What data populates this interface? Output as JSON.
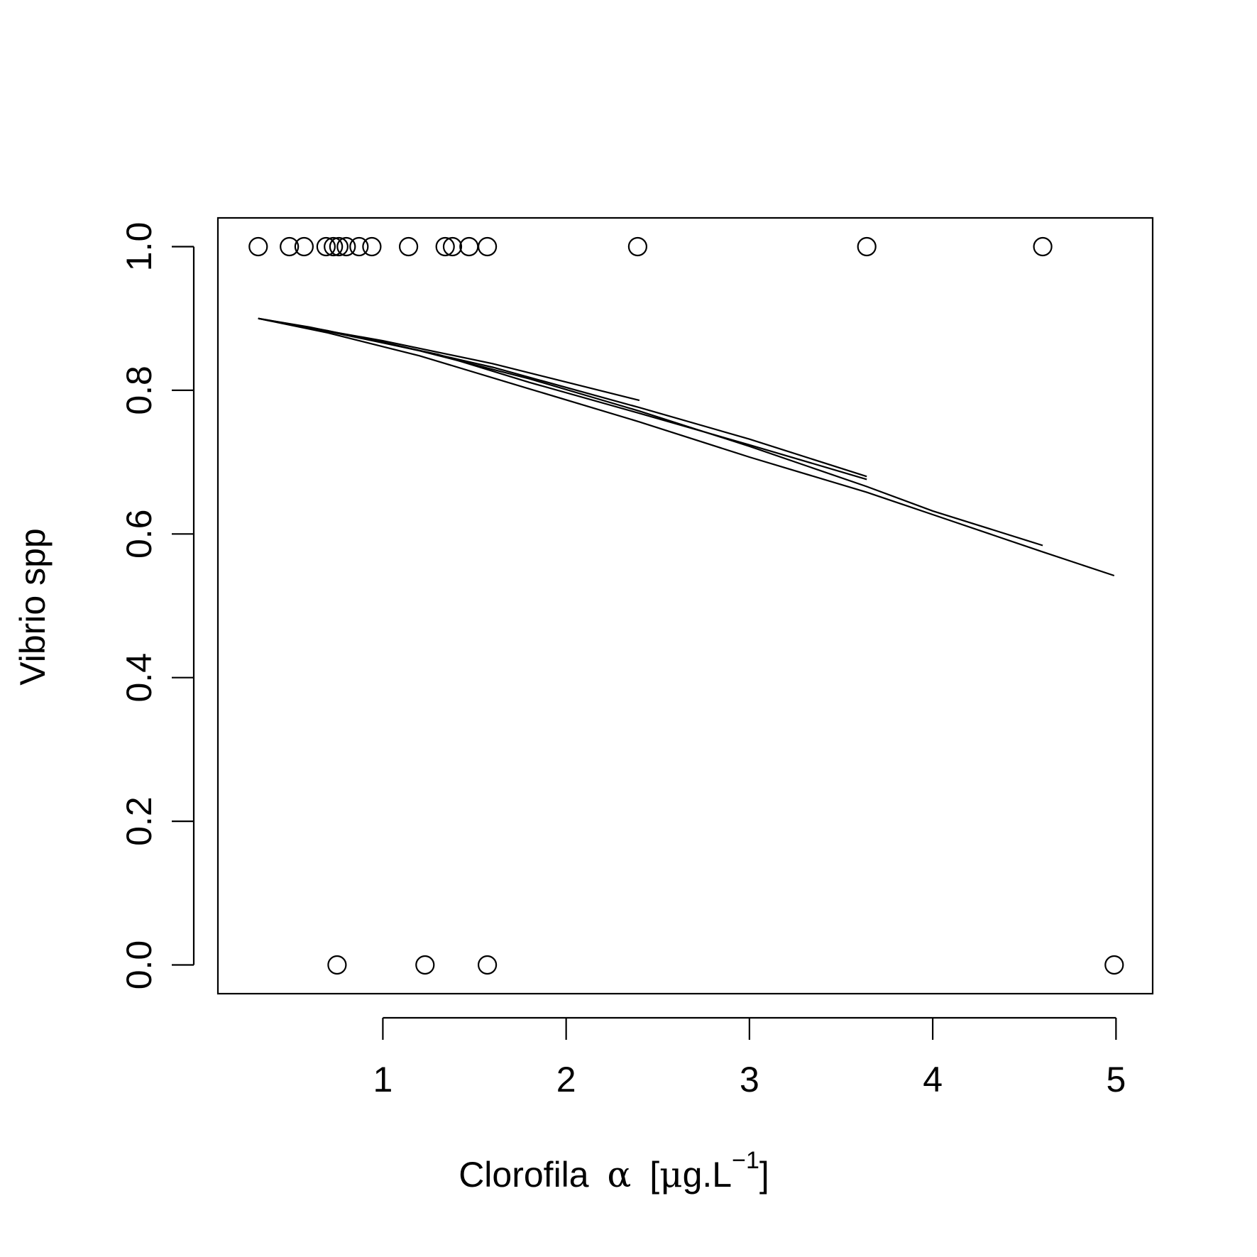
{
  "chart_data": {
    "type": "scatter",
    "title": "",
    "xlabel_main": "Clorofila",
    "xlabel_symbol": "α",
    "xlabel_unit_open": "[",
    "xlabel_unit_mu": "μ",
    "xlabel_unit_rest": "g.L",
    "xlabel_sup": "−1",
    "xlabel_unit_close": "]",
    "ylabel": "Vibrio spp",
    "xlim": [
      0.1,
      5.2
    ],
    "ylim": [
      -0.04,
      1.04
    ],
    "x_ticks": [
      1,
      2,
      3,
      4,
      5
    ],
    "x_tick_labels": [
      "1",
      "2",
      "3",
      "4",
      "5"
    ],
    "y_ticks": [
      0.0,
      0.2,
      0.4,
      0.6,
      0.8,
      1.0
    ],
    "y_tick_labels": [
      "0.0",
      "0.2",
      "0.4",
      "0.6",
      "0.8",
      "1.0"
    ],
    "grid": false,
    "series": [
      {
        "kind": "points",
        "marker": "open-circle",
        "x": [
          0.32,
          0.49,
          0.57,
          0.69,
          0.73,
          0.76,
          0.8,
          0.87,
          0.94,
          1.14,
          1.34,
          1.38,
          1.47,
          1.57,
          2.39,
          3.64,
          4.6,
          0.75,
          1.23,
          1.57,
          4.99
        ],
        "y": [
          1,
          1,
          1,
          1,
          1,
          1,
          1,
          1,
          1,
          1,
          1,
          1,
          1,
          1,
          1,
          1,
          1,
          0,
          0,
          0,
          0
        ]
      },
      {
        "kind": "lines",
        "lines": [
          {
            "x": [
              0.32,
              0.6,
              1.0,
              1.6,
              2.4
            ],
            "y": [
              0.9,
              0.887,
              0.869,
              0.837,
              0.786
            ]
          },
          {
            "x": [
              0.32,
              0.6,
              1.0,
              1.6,
              2.4,
              3.0,
              3.64
            ],
            "y": [
              0.9,
              0.888,
              0.867,
              0.832,
              0.776,
              0.732,
              0.68
            ]
          },
          {
            "x": [
              0.32,
              0.7,
              1.2,
              1.8,
              2.4,
              3.0,
              3.64,
              4.0,
              4.6
            ],
            "y": [
              0.9,
              0.883,
              0.855,
              0.816,
              0.771,
              0.722,
              0.666,
              0.632,
              0.584
            ]
          },
          {
            "x": [
              0.32,
              0.7,
              1.2,
              1.8,
              2.4,
              3.0,
              3.64,
              4.0,
              4.6,
              4.99
            ],
            "y": [
              0.9,
              0.88,
              0.848,
              0.802,
              0.756,
              0.707,
              0.658,
              0.627,
              0.575,
              0.542
            ]
          },
          {
            "x": [
              0.32,
              0.7,
              1.3,
              1.8,
              2.4,
              3.0,
              3.64
            ],
            "y": [
              0.9,
              0.882,
              0.85,
              0.811,
              0.768,
              0.724,
              0.676
            ]
          }
        ]
      }
    ]
  }
}
